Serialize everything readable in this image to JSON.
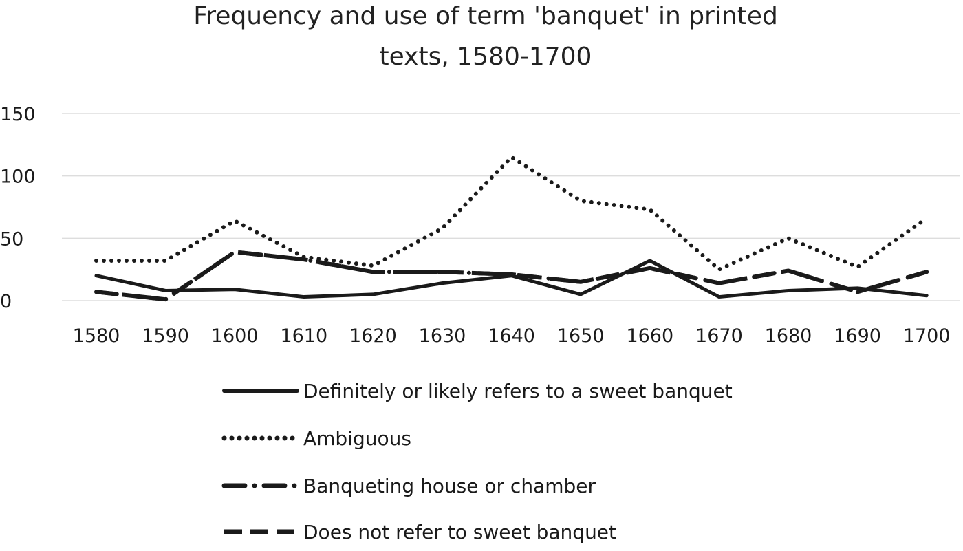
{
  "chart_data": {
    "type": "line",
    "title_lines": [
      "Frequency and use of term 'banquet' in printed",
      "texts, 1580-1700"
    ],
    "xlabel": "",
    "ylabel": "",
    "x": [
      "1580",
      "1590",
      "1600",
      "1610",
      "1620",
      "1630",
      "1640",
      "1650",
      "1660",
      "1670",
      "1680",
      "1690",
      "1700"
    ],
    "y_ticks": [
      "0",
      "50",
      "100",
      "150"
    ],
    "ylim": [
      0,
      150
    ],
    "grid": true,
    "legend_position": "bottom",
    "series": [
      {
        "name": "Definitely or likely refers to a sweet banquet",
        "style": "solid",
        "color": "#1a1a1a",
        "values": [
          20,
          8,
          9,
          3,
          5,
          14,
          20,
          5,
          32,
          3,
          8,
          10,
          4
        ]
      },
      {
        "name": "Ambiguous",
        "style": "dotted",
        "color": "#1a1a1a",
        "values": [
          32,
          32,
          64,
          35,
          28,
          58,
          115,
          80,
          73,
          25,
          50,
          27,
          66
        ]
      },
      {
        "name": "Banqueting house or chamber",
        "style": "dash-dot",
        "color": "#1a1a1a",
        "values": [
          7,
          1,
          39,
          33,
          23,
          23,
          21,
          15,
          26,
          14,
          24,
          7,
          23
        ]
      },
      {
        "name": "Does not refer to sweet banquet",
        "style": "dashed",
        "color": "#1a1a1a",
        "values": [
          7,
          1,
          39,
          33,
          23,
          23,
          21,
          15,
          26,
          14,
          24,
          7,
          23
        ]
      }
    ]
  }
}
